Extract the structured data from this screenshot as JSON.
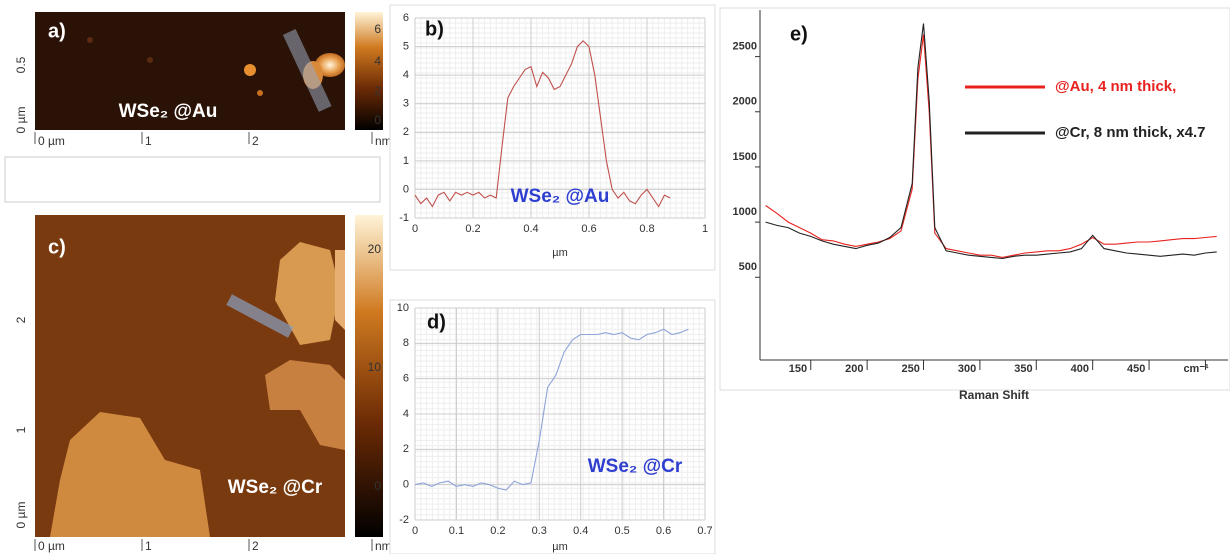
{
  "afm_panels": [
    {
      "label": "a)",
      "sample": "WSe₂ @Au",
      "x_ticks": [
        "0 µm",
        "1",
        "2",
        "nm"
      ],
      "y_ticks": [
        "0 µm",
        "0.5"
      ],
      "colorbar_ticks": [
        "6",
        "4",
        "2",
        "0"
      ]
    },
    {
      "label": "c)",
      "sample": "WSe₂ @Cr",
      "x_ticks": [
        "0 µm",
        "1",
        "2",
        "nm"
      ],
      "y_ticks": [
        "0 µm",
        "1",
        "2"
      ],
      "colorbar_ticks": [
        "20",
        "10",
        "0"
      ]
    }
  ],
  "chart_data": [
    {
      "type": "line",
      "title": "b)",
      "xlabel": "µm",
      "annotation": "WSe₂ @Au",
      "grid": true,
      "color": "#c0504d",
      "x": [
        0,
        0.02,
        0.04,
        0.06,
        0.08,
        0.1,
        0.12,
        0.14,
        0.16,
        0.18,
        0.2,
        0.22,
        0.24,
        0.26,
        0.28,
        0.3,
        0.32,
        0.34,
        0.36,
        0.38,
        0.4,
        0.42,
        0.44,
        0.46,
        0.48,
        0.5,
        0.52,
        0.54,
        0.56,
        0.58,
        0.6,
        0.62,
        0.64,
        0.66,
        0.68,
        0.7,
        0.72,
        0.74,
        0.76,
        0.78,
        0.8,
        0.82,
        0.84,
        0.86,
        0.88
      ],
      "values": [
        -0.2,
        -0.5,
        -0.3,
        -0.6,
        -0.2,
        -0.1,
        -0.4,
        -0.1,
        -0.2,
        -0.1,
        -0.2,
        -0.1,
        -0.3,
        -0.2,
        -0.3,
        1.5,
        3.2,
        3.6,
        3.9,
        4.2,
        4.3,
        3.6,
        4.1,
        3.9,
        3.5,
        3.6,
        4,
        4.4,
        5,
        5.2,
        5,
        4,
        2.5,
        1,
        0,
        -0.3,
        -0.1,
        -0.4,
        -0.5,
        -0.2,
        0,
        -0.3,
        -0.6,
        -0.2,
        -0.3
      ],
      "xlim": [
        0,
        1
      ],
      "xticks": [
        0,
        0.2,
        0.4,
        0.6,
        0.8,
        1
      ],
      "ylim": [
        -1,
        6
      ],
      "yticks": [
        -1,
        0,
        1,
        2,
        3,
        4,
        5,
        6
      ]
    },
    {
      "type": "line",
      "title": "d)",
      "xlabel": "µm",
      "annotation": "WSe₂ @Cr",
      "grid": true,
      "color": "#8ea4d8",
      "x": [
        0,
        0.02,
        0.04,
        0.06,
        0.08,
        0.1,
        0.12,
        0.14,
        0.16,
        0.18,
        0.2,
        0.22,
        0.24,
        0.26,
        0.28,
        0.3,
        0.32,
        0.34,
        0.36,
        0.38,
        0.4,
        0.42,
        0.44,
        0.46,
        0.48,
        0.5,
        0.52,
        0.54,
        0.56,
        0.58,
        0.6,
        0.62,
        0.64,
        0.66
      ],
      "values": [
        0,
        0.1,
        -0.1,
        0.1,
        0.2,
        -0.1,
        0,
        -0.1,
        0.1,
        0,
        -0.2,
        -0.3,
        0.2,
        0,
        0.1,
        2.5,
        5.5,
        6.2,
        7.5,
        8.2,
        8.5,
        8.5,
        8.5,
        8.6,
        8.5,
        8.6,
        8.3,
        8.2,
        8.5,
        8.6,
        8.8,
        8.5,
        8.6,
        8.8
      ],
      "xlim": [
        0,
        0.7
      ],
      "xticks": [
        0,
        0.1,
        0.2,
        0.3,
        0.4,
        0.5,
        0.6,
        0.7
      ],
      "ylim": [
        -2,
        10
      ],
      "yticks": [
        -2,
        0,
        2,
        4,
        6,
        8,
        10
      ]
    },
    {
      "type": "line",
      "title": "e)",
      "xlabel": "Raman Shift",
      "grid": false,
      "legend": "upper right",
      "x": [
        110,
        120,
        130,
        140,
        150,
        160,
        170,
        180,
        190,
        200,
        210,
        220,
        230,
        240,
        245,
        250,
        255,
        260,
        270,
        280,
        290,
        300,
        310,
        320,
        330,
        340,
        350,
        360,
        370,
        380,
        390,
        400,
        410,
        420,
        430,
        440,
        450,
        460,
        470,
        480,
        490,
        500,
        510
      ],
      "series": [
        {
          "name": "@Au, 4 nm thick,",
          "color": "#e8231f",
          "values": [
            1150,
            1080,
            1000,
            950,
            900,
            840,
            830,
            800,
            780,
            800,
            820,
            850,
            920,
            1300,
            2300,
            2700,
            2000,
            900,
            760,
            740,
            720,
            700,
            700,
            680,
            700,
            720,
            730,
            740,
            740,
            760,
            800,
            860,
            800,
            800,
            810,
            820,
            820,
            830,
            840,
            850,
            850,
            860,
            870
          ]
        },
        {
          "name": "@Cr, 8 nm thick, x4.7",
          "color": "#222222",
          "values": [
            1000,
            970,
            950,
            900,
            870,
            830,
            800,
            780,
            760,
            790,
            810,
            860,
            950,
            1350,
            2400,
            2800,
            2100,
            950,
            740,
            720,
            700,
            690,
            680,
            670,
            690,
            700,
            700,
            710,
            720,
            730,
            760,
            880,
            760,
            740,
            720,
            710,
            700,
            690,
            700,
            710,
            700,
            720,
            730
          ]
        }
      ],
      "xlim": [
        105,
        520
      ],
      "xticks": [
        150,
        200,
        250,
        300,
        350,
        400,
        450,
        {
          "value": 500,
          "label": "cm⁻¹"
        }
      ],
      "ylim": [
        -250,
        2850
      ],
      "yticks": [
        500,
        1000,
        1500,
        2000,
        2500
      ]
    }
  ]
}
